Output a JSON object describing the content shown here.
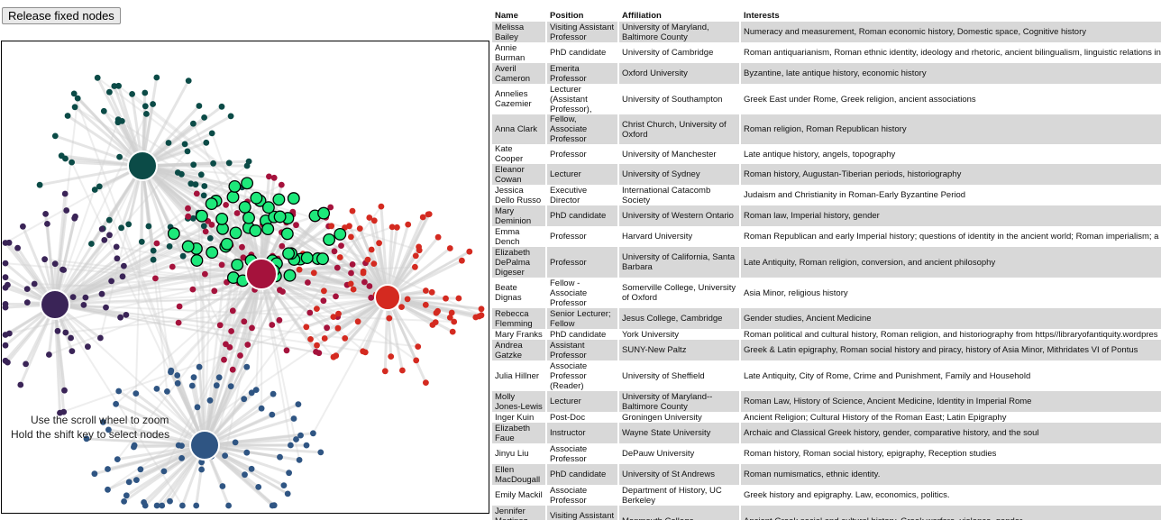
{
  "controls": {
    "release_label": "Release fixed nodes"
  },
  "hints": {
    "zoom": "Use the scroll wheel to zoom",
    "shift": "Hold the shift key to select nodes"
  },
  "graph": {
    "colors": {
      "green": "#1de87a",
      "teal": "#0b4b47",
      "purple": "#3a2457",
      "crimson": "#a5123c",
      "red": "#d42a20",
      "blue": "#2f5583"
    },
    "hubs": [
      {
        "name": "teal",
        "color": "#0b4b47"
      },
      {
        "name": "purple",
        "color": "#3a2457"
      },
      {
        "name": "crimson",
        "color": "#a5123c"
      },
      {
        "name": "red",
        "color": "#d42a20"
      },
      {
        "name": "blue",
        "color": "#2f5583"
      }
    ]
  },
  "table": {
    "headers": [
      "Name",
      "Position",
      "Affiliation",
      "Interests"
    ],
    "rows": [
      [
        "Melissa Bailey",
        "Visiting Assistant Professor",
        "University of Maryland, Baltimore County",
        "Numeracy and measurement, Roman economic history, Domestic space, Cognitive history"
      ],
      [
        "Annie Burman",
        "PhD candidate",
        "University of Cambridge",
        "Roman antiquarianism, Roman ethnic identity, ideology and rhetoric, ancient bilingualism, linguistic relations in"
      ],
      [
        "Averil Cameron",
        "Emerita Professor",
        "Oxford University",
        "Byzantine, late antique history, economic history"
      ],
      [
        "Annelies Cazemier",
        "Lecturer (Assistant Professor),",
        "University of Southampton",
        "Greek East under Rome, Greek religion, ancient associations"
      ],
      [
        "Anna Clark",
        "Fellow, Associate Professor",
        "Christ Church, University of Oxford",
        "Roman religion, Roman Republican history"
      ],
      [
        "Kate Cooper",
        "Professor",
        "University of Manchester",
        "Late antique history, angels, topography"
      ],
      [
        "Eleanor Cowan",
        "Lecturer",
        "University of Sydney",
        "Roman history, Augustan-Tiberian periods, historiography"
      ],
      [
        "Jessica Dello Russo",
        "Executive Director",
        "International Catacomb Society",
        "Judaism and Christianity in Roman-Early Byzantine Period"
      ],
      [
        "Mary Deminion",
        "PhD candidate",
        "University of Western Ontario",
        "Roman law, Imperial history, gender"
      ],
      [
        "Emma Dench",
        "Professor",
        "Harvard University",
        "Roman Republican and early Imperial history; questions of identity in the ancient world; Roman imperialism; a"
      ],
      [
        "Elizabeth DePalma Digeser",
        "Professor",
        "University of California, Santa Barbara",
        "Late Antiquity, Roman religion, conversion, and ancient philosophy"
      ],
      [
        "Beate Dignas",
        "Fellow - Associate Professor",
        "Somerville College, University of Oxford",
        "Asia Minor, religious history"
      ],
      [
        "Rebecca Flemming",
        "Senior Lecturer; Fellow",
        "Jesus College, Cambridge",
        "Gender studies, Ancient Medicine"
      ],
      [
        "Mary Franks",
        "PhD candidate",
        "York University",
        "Roman political and cultural history, Roman religion, and historiography from https//libraryofantiquity.wordpres"
      ],
      [
        "Andrea Gatzke",
        "Assistant Professor",
        "SUNY-New Paltz",
        "Greek & Latin epigraphy, Roman social history and piracy, history of Asia Minor, Mithridates VI of Pontus"
      ],
      [
        "Julia Hillner",
        "Associate Professor (Reader)",
        "University of Sheffield",
        "Late Antiquity, City of Rome, Crime and Punishment, Family and Household"
      ],
      [
        "Molly Jones-Lewis",
        "Lecturer",
        "University of Maryland--Baltimore County",
        "Roman Law, History of Science, Ancient Medicine, Identity in Imperial Rome"
      ],
      [
        "Inger Kuin",
        "Post-Doc",
        "Groningen University",
        "Ancient Religion; Cultural History of the Roman East; Latin Epigraphy"
      ],
      [
        "Elizabeth Faue",
        "Instructor",
        "Wayne State University",
        "Archaic and Classical Greek history, gender, comparative history, and the soul"
      ],
      [
        "Jinyu Liu",
        "Associate Professor",
        "DePauw University",
        "Roman history, Roman social history, epigraphy, Reception studies"
      ],
      [
        "Ellen MacDougall",
        "PhD candidate",
        "University of St Andrews",
        "Roman numismatics, ethnic identity."
      ],
      [
        "Emily Mackil",
        "Associate Professor",
        "Department of History, UC Berkeley",
        "Greek history and epigraphy. Law, economics, politics."
      ],
      [
        "Jennifer Martinez Morales",
        "Visiting Assistant Professor",
        "Monmouth College",
        "Ancient Greek social and cultural history, Greek warfare, violence, gender"
      ]
    ]
  }
}
